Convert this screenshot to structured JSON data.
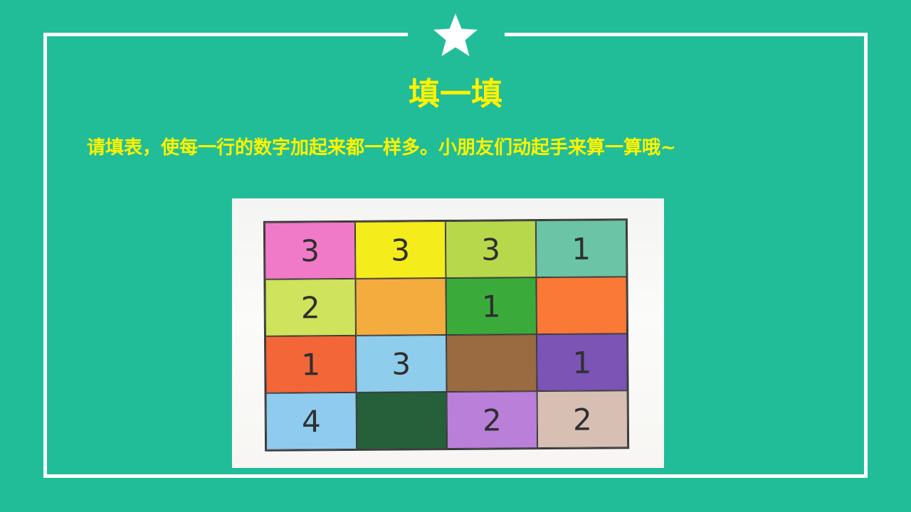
{
  "slide": {
    "background_color": "#21bd98",
    "frame_color": "#ffffff",
    "text_color": "#fff200",
    "decoration_icon": "star-icon",
    "title": "填一填",
    "instruction": "请填表，使每一行的数字加起来都一样多。小朋友们动起手来算一算哦~"
  },
  "table": {
    "rows": [
      [
        {
          "value": "3",
          "color": "#f07ac8"
        },
        {
          "value": "3",
          "color": "#f5ec1c"
        },
        {
          "value": "3",
          "color": "#b8d84b"
        },
        {
          "value": "1",
          "color": "#6cc4a6"
        }
      ],
      [
        {
          "value": "2",
          "color": "#cfe35c"
        },
        {
          "value": "",
          "color": "#f4ac3f"
        },
        {
          "value": "1",
          "color": "#3aab3b"
        },
        {
          "value": "",
          "color": "#fa7936"
        }
      ],
      [
        {
          "value": "1",
          "color": "#f36638"
        },
        {
          "value": "3",
          "color": "#8fcdec"
        },
        {
          "value": "",
          "color": "#9a6a40"
        },
        {
          "value": "1",
          "color": "#7b54b5"
        }
      ],
      [
        {
          "value": "4",
          "color": "#8fcbef"
        },
        {
          "value": "",
          "color": "#26603a"
        },
        {
          "value": "2",
          "color": "#b97fd9"
        },
        {
          "value": "2",
          "color": "#d7c0b3"
        }
      ]
    ]
  }
}
